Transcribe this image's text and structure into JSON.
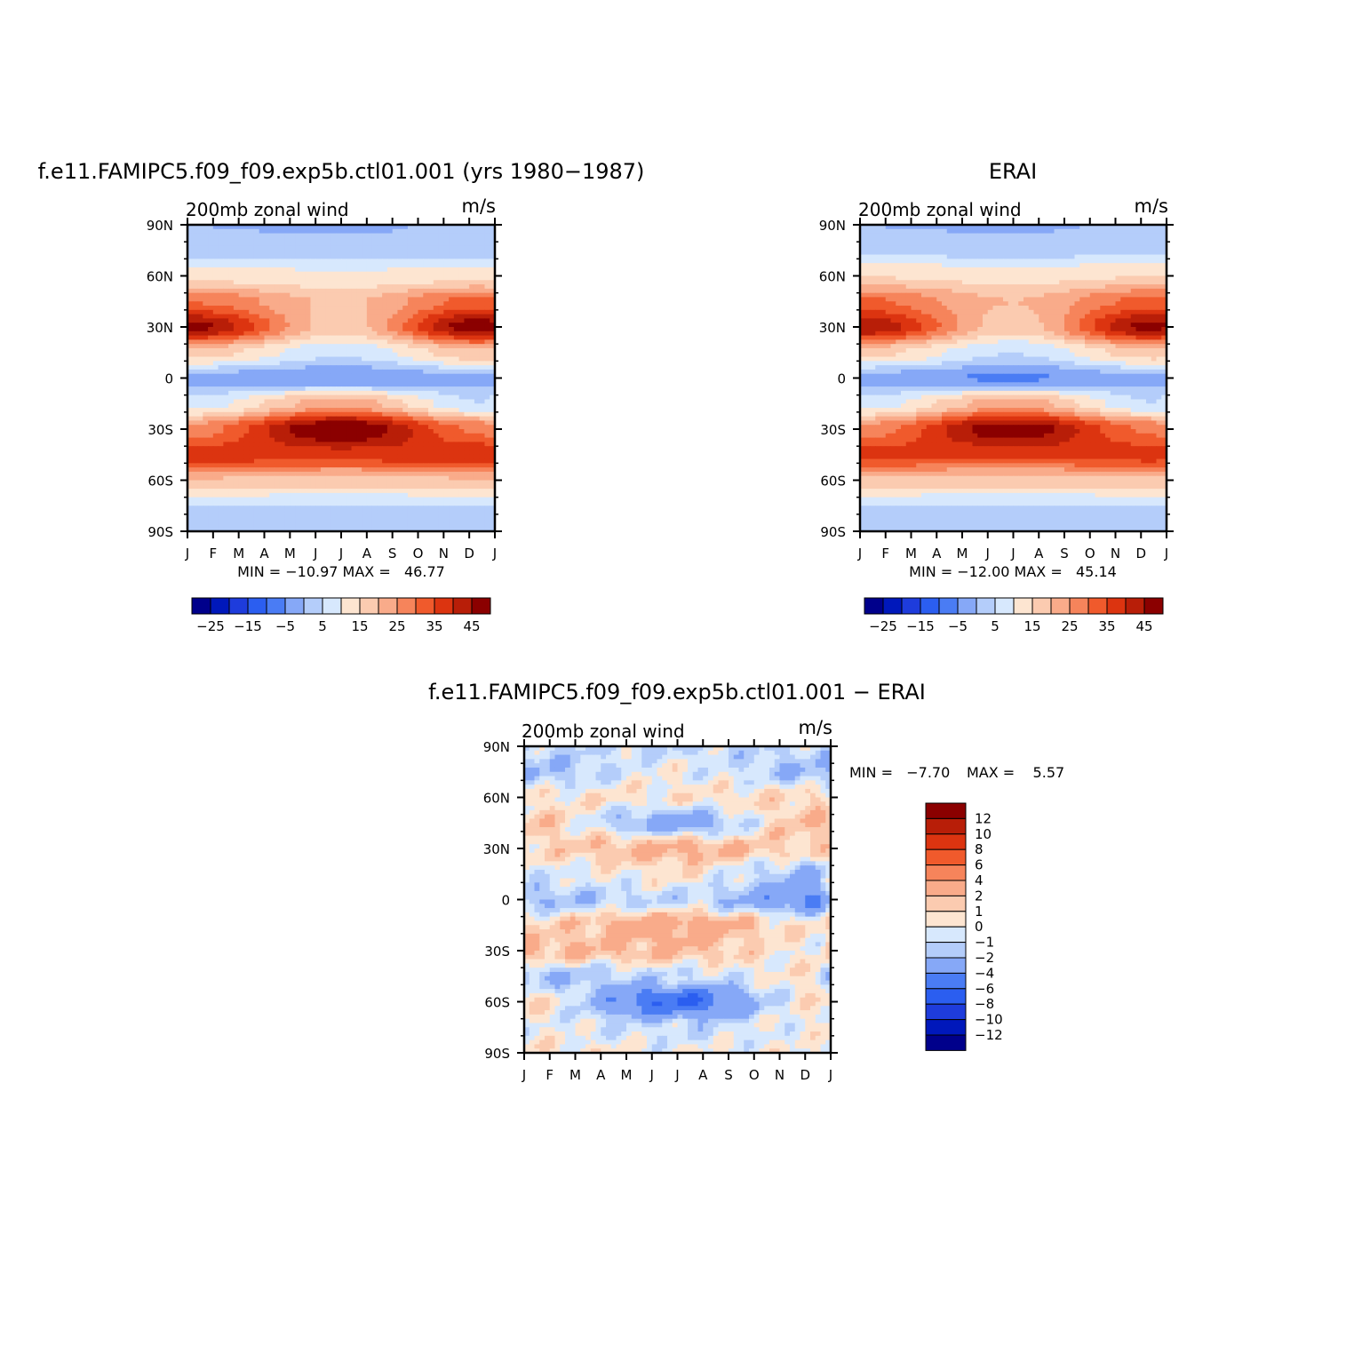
{
  "colors": {
    "full_scale": [
      "#00008b",
      "#0018bb",
      "#1e3cdc",
      "#2b5ef0",
      "#4a7cf4",
      "#86a8f7",
      "#b4cdfa",
      "#d7e8fd",
      "#fde5d1",
      "#fbcbb0",
      "#f9ab8a",
      "#f6845b",
      "#f05a2c",
      "#dc3410",
      "#b81e08",
      "#8b0000"
    ],
    "diff_scale": [
      "#8b0000",
      "#b81e08",
      "#dc3410",
      "#f05a2c",
      "#f6845b",
      "#f9ab8a",
      "#fbcbb0",
      "#fde5d1",
      "#d7e8fd",
      "#b4cdfa",
      "#86a8f7",
      "#4a7cf4",
      "#2b5ef0",
      "#1e3cdc",
      "#0018bb",
      "#00008b"
    ]
  },
  "chart_data": [
    {
      "type": "heatmap",
      "title": "f.e11.FAMIPC5.f09_f09.exp5b.ctl01.001 (yrs 1980−1987)",
      "subtitle": "200mb zonal wind",
      "units": "m/s",
      "x_tick_labels": [
        "J",
        "F",
        "M",
        "A",
        "M",
        "J",
        "J",
        "A",
        "S",
        "O",
        "N",
        "D",
        "J"
      ],
      "y_tick_labels": [
        "90N",
        "60N",
        "30N",
        "0",
        "30S",
        "60S",
        "90S"
      ],
      "ylim": [
        -90,
        90
      ],
      "stats": "MIN = −10.97 MAX =   46.77",
      "colorbar": {
        "orientation": "horizontal",
        "labels": [
          "−25",
          "−15",
          "−5",
          "5",
          "15",
          "25",
          "35",
          "45"
        ]
      },
      "field": {
        "lat": [
          90,
          75,
          60,
          45,
          30,
          15,
          0,
          -15,
          -30,
          -45,
          -60,
          -75,
          -90
        ],
        "month_values": {
          "Jan": [
            -5,
            -2,
            8,
            25,
            42,
            13,
            -7,
            2,
            22,
            33,
            15,
            0,
            -4
          ],
          "Jul": [
            -6,
            -3,
            6,
            14,
            12,
            1,
            -10,
            18,
            46,
            33,
            12,
            0,
            -3
          ],
          "Dec": [
            -4,
            -2,
            8,
            27,
            44,
            14,
            -6,
            0,
            24,
            34,
            15,
            0,
            -4
          ]
        }
      }
    },
    {
      "type": "heatmap",
      "title": "ERAI",
      "subtitle": "200mb zonal wind",
      "units": "m/s",
      "x_tick_labels": [
        "J",
        "F",
        "M",
        "A",
        "M",
        "J",
        "J",
        "A",
        "S",
        "O",
        "N",
        "D",
        "J"
      ],
      "y_tick_labels": [
        "90N",
        "60N",
        "30N",
        "0",
        "30S",
        "60S",
        "90S"
      ],
      "ylim": [
        -90,
        90
      ],
      "stats": "MIN = −12.00 MAX =   45.14",
      "colorbar": {
        "orientation": "horizontal",
        "labels": [
          "−25",
          "−15",
          "−5",
          "5",
          "15",
          "25",
          "35",
          "45"
        ]
      },
      "field": {
        "lat": [
          90,
          75,
          60,
          45,
          30,
          15,
          0,
          -15,
          -30,
          -45,
          -60,
          -75,
          -90
        ],
        "month_values": {
          "Jan": [
            -5,
            -1,
            10,
            26,
            40,
            12,
            -7,
            2,
            22,
            32,
            14,
            0,
            -4
          ],
          "Jul": [
            -6,
            -2,
            8,
            15,
            12,
            0,
            -11,
            18,
            44,
            32,
            12,
            0,
            -3
          ],
          "Dec": [
            -4,
            -1,
            10,
            27,
            42,
            13,
            -6,
            0,
            24,
            33,
            14,
            0,
            -4
          ]
        }
      }
    },
    {
      "type": "heatmap",
      "title": "f.e11.FAMIPC5.f09_f09.exp5b.ctl01.001 − ERAI",
      "subtitle": "200mb zonal wind",
      "units": "m/s",
      "x_tick_labels": [
        "J",
        "F",
        "M",
        "A",
        "M",
        "J",
        "J",
        "A",
        "S",
        "O",
        "N",
        "D",
        "J"
      ],
      "y_tick_labels": [
        "90N",
        "60N",
        "30N",
        "0",
        "30S",
        "60S",
        "90S"
      ],
      "ylim": [
        -90,
        90
      ],
      "stats_min": "MIN =   −7.70",
      "stats_max": "MAX =    5.57",
      "colorbar": {
        "orientation": "vertical",
        "labels": [
          "12",
          "10",
          "8",
          "6",
          "4",
          "2",
          "1",
          "0",
          "−1",
          "−2",
          "−4",
          "−6",
          "−8",
          "−10",
          "−12"
        ]
      },
      "field": {
        "lat": [
          90,
          75,
          60,
          45,
          30,
          15,
          0,
          -15,
          -30,
          -45,
          -60,
          -75,
          -90
        ],
        "month_values": {
          "Jan": [
            -1,
            -2,
            0.5,
            1.5,
            1,
            -0.5,
            -2,
            1,
            2,
            -2,
            1,
            0,
            0.5
          ],
          "Jul": [
            -1,
            0,
            0.5,
            -3,
            2.5,
            0.5,
            -1,
            3,
            2,
            -1,
            -6,
            -1,
            0
          ],
          "Dec": [
            -1,
            -2,
            1,
            2,
            1,
            -2,
            -4,
            0.5,
            0,
            0.5,
            0.5,
            0,
            0
          ]
        }
      }
    }
  ]
}
